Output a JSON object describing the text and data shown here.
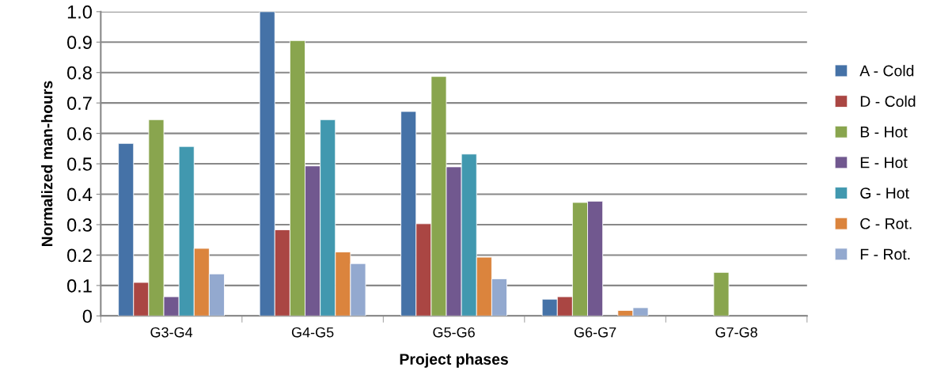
{
  "chart_data": {
    "type": "bar",
    "xlabel": "Project phases",
    "ylabel": "Normalized man-hours",
    "categories": [
      "G3-G4",
      "G4-G5",
      "G5-G6",
      "G6-G7",
      "G7-G8"
    ],
    "series": [
      {
        "name": "A - Cold",
        "color": "#4572a7",
        "values": [
          0.567,
          1.0,
          0.672,
          0.055,
          null
        ]
      },
      {
        "name": "D - Cold",
        "color": "#aa4643",
        "values": [
          0.11,
          0.283,
          0.303,
          0.063,
          null
        ]
      },
      {
        "name": "B - Hot",
        "color": "#89a54e",
        "values": [
          0.645,
          0.905,
          0.787,
          0.373,
          0.143
        ]
      },
      {
        "name": "E - Hot",
        "color": "#71588f",
        "values": [
          0.063,
          0.493,
          0.49,
          0.377,
          null
        ]
      },
      {
        "name": "G - Hot",
        "color": "#4198af",
        "values": [
          0.557,
          0.645,
          0.532,
          null,
          null
        ]
      },
      {
        "name": "C - Rot.",
        "color": "#db843d",
        "values": [
          0.222,
          0.21,
          0.193,
          0.018,
          null
        ]
      },
      {
        "name": "F - Rot.",
        "color": "#93a9cf",
        "values": [
          0.138,
          0.172,
          0.122,
          0.027,
          null
        ]
      }
    ],
    "ylim": [
      0,
      1.0
    ],
    "yticks": [
      0,
      0.1,
      0.2,
      0.3,
      0.4,
      0.5,
      0.6,
      0.7,
      0.8,
      0.9,
      {
        "value": 1.0,
        "label": "1.0"
      }
    ],
    "grid": "y",
    "legend": "right"
  }
}
